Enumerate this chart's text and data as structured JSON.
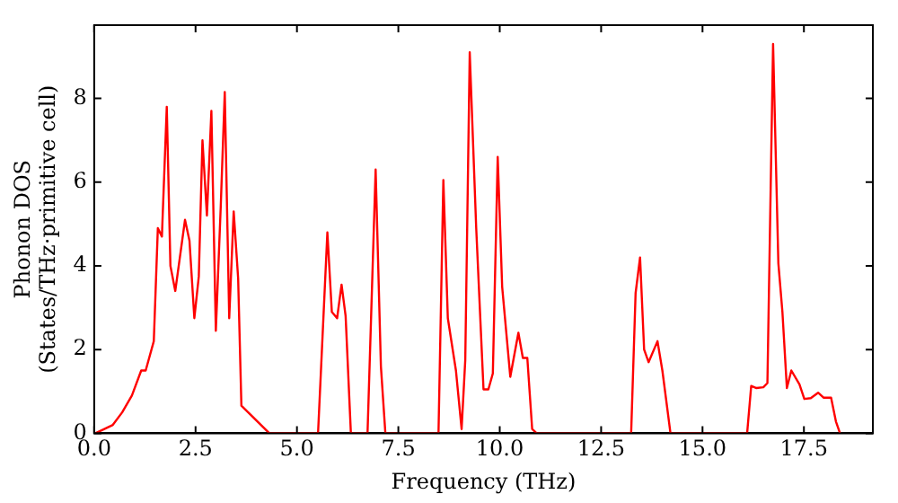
{
  "chart_data": {
    "type": "line",
    "xlabel": "Frequency (THz)",
    "ylabel": "Phonon DOS\n(States/THz·primitive cell)",
    "xlim": [
      0,
      19.2
    ],
    "ylim": [
      0,
      9.75
    ],
    "xticks": [
      {
        "value": 0,
        "label": "0.0"
      },
      {
        "value": 2.5,
        "label": "2.5"
      },
      {
        "value": 5,
        "label": "5.0"
      },
      {
        "value": 7.5,
        "label": "7.5"
      },
      {
        "value": 10,
        "label": "10.0"
      },
      {
        "value": 12.5,
        "label": "12.5"
      },
      {
        "value": 15,
        "label": "15.0"
      },
      {
        "value": 17.5,
        "label": "17.5"
      }
    ],
    "yticks": [
      0,
      2,
      4,
      6,
      8
    ],
    "grid": false,
    "legend": false,
    "marker": "none",
    "line_style": "solid",
    "series": [
      {
        "color": "#ff0000",
        "x": [
          0.03,
          0.46,
          0.69,
          0.93,
          1.16,
          1.27,
          1.47,
          1.57,
          1.67,
          1.79,
          1.88,
          2.0,
          2.24,
          2.35,
          2.47,
          2.58,
          2.67,
          2.78,
          2.89,
          3.0,
          3.12,
          3.22,
          3.33,
          3.44,
          3.55,
          3.63,
          4.32,
          5.52,
          5.75,
          5.86,
          5.99,
          6.1,
          6.2,
          6.33,
          6.74,
          6.94,
          7.07,
          7.18,
          8.49,
          8.61,
          8.72,
          8.92,
          9.06,
          9.15,
          9.26,
          9.42,
          9.6,
          9.72,
          9.83,
          9.95,
          10.06,
          10.26,
          10.46,
          10.57,
          10.68,
          10.8,
          10.91,
          13.24,
          13.35,
          13.46,
          13.56,
          13.67,
          13.89,
          14.01,
          14.21,
          16.1,
          16.2,
          16.33,
          16.5,
          16.6,
          16.74,
          16.87,
          16.97,
          17.08,
          17.19,
          17.39,
          17.51,
          17.67,
          17.85,
          17.99,
          18.17,
          18.29,
          18.39
        ],
        "values": [
          0,
          0.2,
          0.5,
          0.9,
          1.5,
          1.5,
          2.2,
          4.9,
          4.7,
          7.8,
          4.0,
          3.4,
          5.1,
          4.6,
          2.75,
          3.75,
          7.0,
          5.2,
          7.7,
          2.45,
          5.4,
          8.15,
          2.75,
          5.3,
          3.7,
          0.66,
          0,
          0,
          4.8,
          2.9,
          2.75,
          3.55,
          2.8,
          0,
          0,
          6.3,
          1.6,
          0,
          0,
          6.05,
          2.75,
          1.5,
          0.1,
          1.75,
          9.1,
          4.9,
          1.05,
          1.05,
          1.43,
          6.6,
          3.5,
          1.35,
          2.4,
          1.8,
          1.8,
          0.1,
          0,
          0,
          3.35,
          4.2,
          2.0,
          1.7,
          2.2,
          1.5,
          0,
          0,
          1.13,
          1.08,
          1.1,
          1.2,
          9.3,
          4.06,
          2.9,
          1.08,
          1.5,
          1.17,
          0.82,
          0.84,
          0.97,
          0.85,
          0.85,
          0.28,
          0
        ]
      }
    ]
  }
}
